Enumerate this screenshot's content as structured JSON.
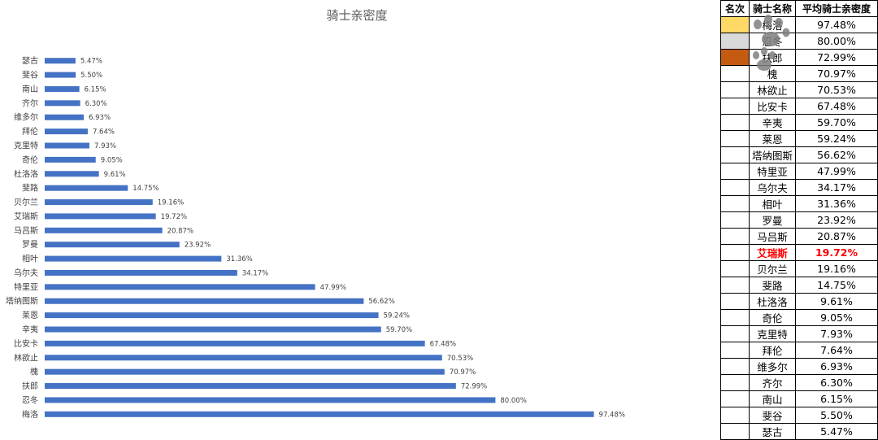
{
  "chart_data": {
    "type": "bar",
    "orientation": "horizontal",
    "title": "骑士亲密度",
    "categories": [
      "瑟古",
      "斐谷",
      "南山",
      "齐尔",
      "维多尔",
      "拜伦",
      "克里特",
      "奇伦",
      "杜洛洛",
      "斐路",
      "贝尔兰",
      "艾瑞斯",
      "马吕斯",
      "罗曼",
      "相叶",
      "乌尔夫",
      "特里亚",
      "塔纳图斯",
      "莱恩",
      "辛夷",
      "比安卡",
      "林欲止",
      "槐",
      "扶郎",
      "忍冬",
      "梅洛"
    ],
    "series": [
      {
        "values": [
          5.47,
          5.5,
          6.15,
          6.3,
          6.93,
          7.64,
          7.93,
          9.05,
          9.61,
          14.75,
          19.16,
          19.72,
          20.87,
          23.92,
          31.36,
          34.17,
          47.99,
          56.62,
          59.24,
          59.7,
          67.48,
          70.53,
          70.97,
          72.99,
          80.0,
          97.48
        ]
      }
    ],
    "value_labels": [
      "5.47%",
      "5.50%",
      "6.15%",
      "6.30%",
      "6.93%",
      "7.64%",
      "7.93%",
      "9.05%",
      "9.61%",
      "14.75%",
      "19.16%",
      "19.72%",
      "20.87%",
      "23.92%",
      "31.36%",
      "34.17%",
      "47.99%",
      "56.62%",
      "59.24%",
      "59.70%",
      "67.48%",
      "70.53%",
      "70.97%",
      "72.99%",
      "80.00%",
      "97.48%"
    ],
    "xlim": [
      0,
      100
    ],
    "grid": false,
    "bar_color": "#4472c4"
  },
  "table": {
    "headers": {
      "rank": "名次",
      "name": "骑士名称",
      "value": "平均骑士亲密度"
    },
    "medal_colors": [
      "#ffd966",
      "#d9d9d9",
      "#c55a11"
    ],
    "highlight_color": "#ff0000",
    "rows": [
      {
        "name": "梅洛",
        "value": "97.48%"
      },
      {
        "name": "忍冬",
        "value": "80.00%"
      },
      {
        "name": "扶郎",
        "value": "72.99%"
      },
      {
        "name": "槐",
        "value": "70.97%"
      },
      {
        "name": "林欲止",
        "value": "70.53%"
      },
      {
        "name": "比安卡",
        "value": "67.48%"
      },
      {
        "name": "辛夷",
        "value": "59.70%"
      },
      {
        "name": "莱恩",
        "value": "59.24%"
      },
      {
        "name": "塔纳图斯",
        "value": "56.62%"
      },
      {
        "name": "特里亚",
        "value": "47.99%"
      },
      {
        "name": "乌尔夫",
        "value": "34.17%"
      },
      {
        "name": "相叶",
        "value": "31.36%"
      },
      {
        "name": "罗曼",
        "value": "23.92%"
      },
      {
        "name": "马吕斯",
        "value": "20.87%"
      },
      {
        "name": "艾瑞斯",
        "value": "19.72%",
        "highlight": true
      },
      {
        "name": "贝尔兰",
        "value": "19.16%"
      },
      {
        "name": "斐路",
        "value": "14.75%"
      },
      {
        "name": "杜洛洛",
        "value": "9.61%"
      },
      {
        "name": "奇伦",
        "value": "9.05%"
      },
      {
        "name": "克里特",
        "value": "7.93%"
      },
      {
        "name": "拜伦",
        "value": "7.64%"
      },
      {
        "name": "维多尔",
        "value": "6.93%"
      },
      {
        "name": "齐尔",
        "value": "6.30%"
      },
      {
        "name": "南山",
        "value": "6.15%"
      },
      {
        "name": "斐谷",
        "value": "5.50%"
      },
      {
        "name": "瑟古",
        "value": "5.47%"
      }
    ]
  },
  "decoration": {
    "icon": "paw-print-icon",
    "color": "#7f7f7f"
  }
}
